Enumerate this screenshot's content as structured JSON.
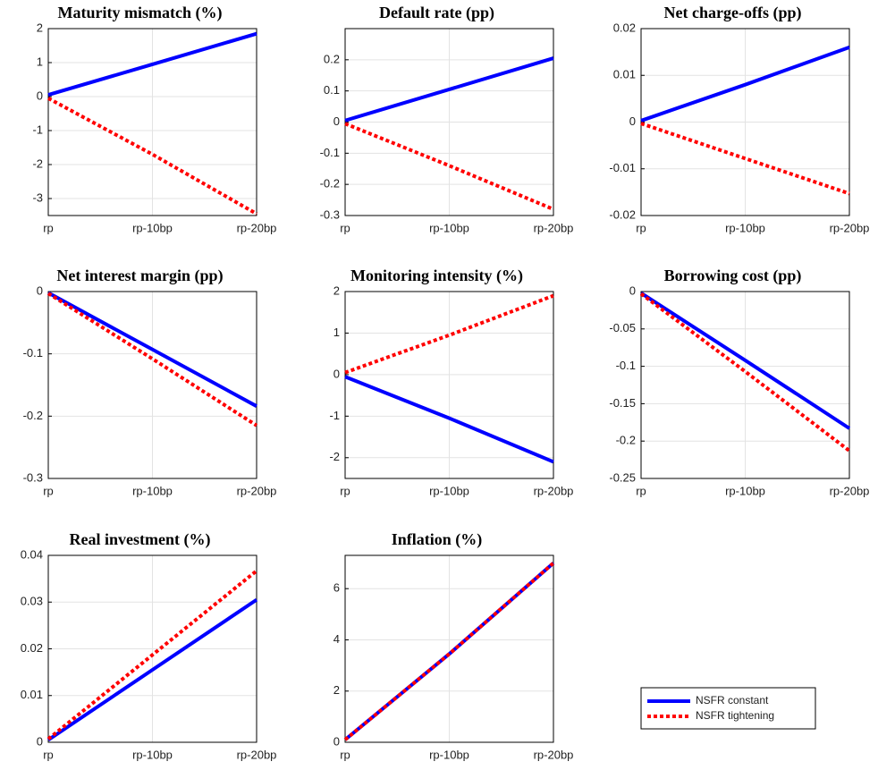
{
  "chart_data": [
    {
      "type": "line",
      "title": "Maturity mismatch (%)",
      "categories": [
        "rp",
        "rp-10bp",
        "rp-20bp"
      ],
      "series": [
        {
          "name": "NSFR constant",
          "color": "#0000ff",
          "values": [
            0.05,
            0.95,
            1.85
          ]
        },
        {
          "name": "NSFR tightening",
          "color": "#ff0000",
          "values": [
            -0.05,
            -1.7,
            -3.45
          ]
        }
      ],
      "ylim": [
        -3.5,
        2
      ],
      "yticks": [
        -3,
        -2,
        -1,
        0,
        1,
        2
      ],
      "grid": true
    },
    {
      "type": "line",
      "title": "Default rate (pp)",
      "categories": [
        "rp",
        "rp-10bp",
        "rp-20bp"
      ],
      "series": [
        {
          "color": "#0000ff",
          "values": [
            0.005,
            0.105,
            0.205
          ]
        },
        {
          "color": "#ff0000",
          "values": [
            -0.005,
            -0.14,
            -0.28
          ]
        }
      ],
      "ylim": [
        -0.3,
        0.3
      ],
      "yticks": [
        -0.3,
        -0.2,
        -0.1,
        0,
        0.1,
        0.2
      ],
      "grid": true
    },
    {
      "type": "line",
      "title": "Net charge-offs (pp)",
      "categories": [
        "rp",
        "rp-10bp",
        "rp-20bp"
      ],
      "series": [
        {
          "color": "#0000ff",
          "values": [
            0.0003,
            0.008,
            0.016
          ]
        },
        {
          "color": "#ff0000",
          "values": [
            -0.0003,
            -0.0078,
            -0.0153
          ]
        }
      ],
      "ylim": [
        -0.02,
        0.02
      ],
      "yticks": [
        -0.02,
        -0.01,
        0,
        0.01,
        0.02
      ],
      "grid": true
    },
    {
      "type": "line",
      "title": "Net interest margin (pp)",
      "categories": [
        "rp",
        "rp-10bp",
        "rp-20bp"
      ],
      "series": [
        {
          "color": "#0000ff",
          "values": [
            -0.002,
            -0.093,
            -0.184
          ]
        },
        {
          "color": "#ff0000",
          "values": [
            -0.003,
            -0.108,
            -0.215
          ]
        }
      ],
      "ylim": [
        -0.3,
        0
      ],
      "yticks": [
        -0.3,
        -0.2,
        -0.1,
        0
      ],
      "grid": true
    },
    {
      "type": "line",
      "title": "Monitoring intensity (%)",
      "categories": [
        "rp",
        "rp-10bp",
        "rp-20bp"
      ],
      "series": [
        {
          "color": "#0000ff",
          "values": [
            -0.05,
            -1.05,
            -2.1
          ]
        },
        {
          "color": "#ff0000",
          "values": [
            0.05,
            0.95,
            1.9
          ]
        }
      ],
      "ylim": [
        -2.5,
        2
      ],
      "yticks": [
        -2,
        -1,
        0,
        1,
        2
      ],
      "grid": true
    },
    {
      "type": "line",
      "title": "Borrowing cost (pp)",
      "categories": [
        "rp",
        "rp-10bp",
        "rp-20bp"
      ],
      "series": [
        {
          "color": "#0000ff",
          "values": [
            -0.002,
            -0.092,
            -0.183
          ]
        },
        {
          "color": "#ff0000",
          "values": [
            -0.003,
            -0.107,
            -0.213
          ]
        }
      ],
      "ylim": [
        -0.25,
        0
      ],
      "yticks": [
        -0.25,
        -0.2,
        -0.15,
        -0.1,
        -0.05,
        0
      ],
      "grid": true
    },
    {
      "type": "line",
      "title": "Real investment (%)",
      "categories": [
        "rp",
        "rp-10bp",
        "rp-20bp"
      ],
      "series": [
        {
          "color": "#0000ff",
          "values": [
            0.0005,
            0.0155,
            0.0305
          ]
        },
        {
          "color": "#ff0000",
          "values": [
            0.0007,
            0.0187,
            0.0367
          ]
        }
      ],
      "ylim": [
        0,
        0.04
      ],
      "yticks": [
        0,
        0.01,
        0.02,
        0.03,
        0.04
      ],
      "grid": true
    },
    {
      "type": "line",
      "title": "Inflation (%)",
      "categories": [
        "rp",
        "rp-10bp",
        "rp-20bp"
      ],
      "series": [
        {
          "color": "#0000ff",
          "values": [
            0.1,
            3.45,
            7.0
          ]
        },
        {
          "color": "#ff0000",
          "values": [
            0.1,
            3.45,
            7.0
          ]
        }
      ],
      "ylim": [
        0,
        7.3
      ],
      "yticks": [
        0,
        2,
        4,
        6
      ],
      "grid": true
    }
  ]
}
